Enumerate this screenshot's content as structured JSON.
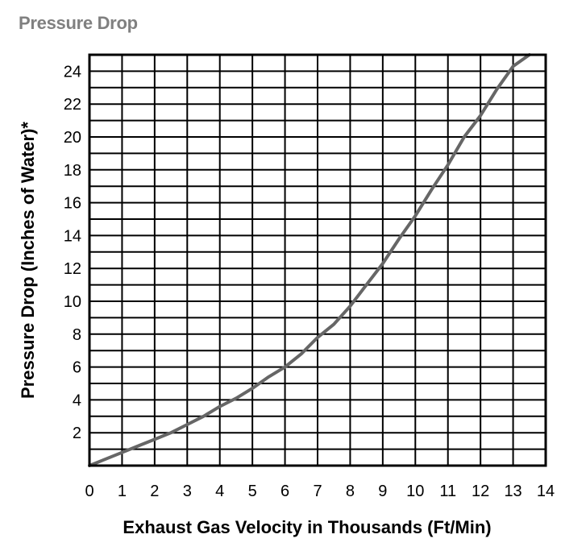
{
  "colors": {
    "grid": "#000000",
    "curve": "#666666",
    "title": "#808080"
  },
  "chart_data": {
    "type": "line",
    "title": "Pressure Drop",
    "xlabel": "Exhaust Gas Velocity in Thousands (Ft/Min)",
    "ylabel": "Pressure Drop (Inches of Water)*",
    "xlim": [
      0,
      14
    ],
    "ylim": [
      0,
      25
    ],
    "x_ticks": [
      0,
      1,
      2,
      3,
      4,
      5,
      6,
      7,
      8,
      9,
      10,
      11,
      12,
      13,
      14
    ],
    "y_ticks": [
      2,
      4,
      6,
      8,
      10,
      12,
      14,
      16,
      18,
      20,
      22,
      24
    ],
    "grid": true,
    "x_grid_step": 1,
    "y_grid_step": 1,
    "series": [
      {
        "x": [
          0,
          0.5,
          1,
          1.5,
          2,
          2.5,
          3,
          3.5,
          4,
          4.5,
          5,
          5.5,
          6,
          6.5,
          7,
          7.5,
          8,
          8.5,
          9,
          9.5,
          10,
          10.5,
          11,
          11.5,
          12,
          12.5,
          13,
          13.5
        ],
        "y": [
          0,
          0.4,
          0.8,
          1.2,
          1.6,
          2.0,
          2.5,
          3.0,
          3.6,
          4.1,
          4.7,
          5.4,
          6.0,
          6.8,
          7.8,
          8.6,
          9.7,
          11.0,
          12.3,
          13.8,
          15.2,
          16.8,
          18.3,
          20.0,
          21.3,
          22.9,
          24.3,
          25.0
        ]
      }
    ]
  }
}
